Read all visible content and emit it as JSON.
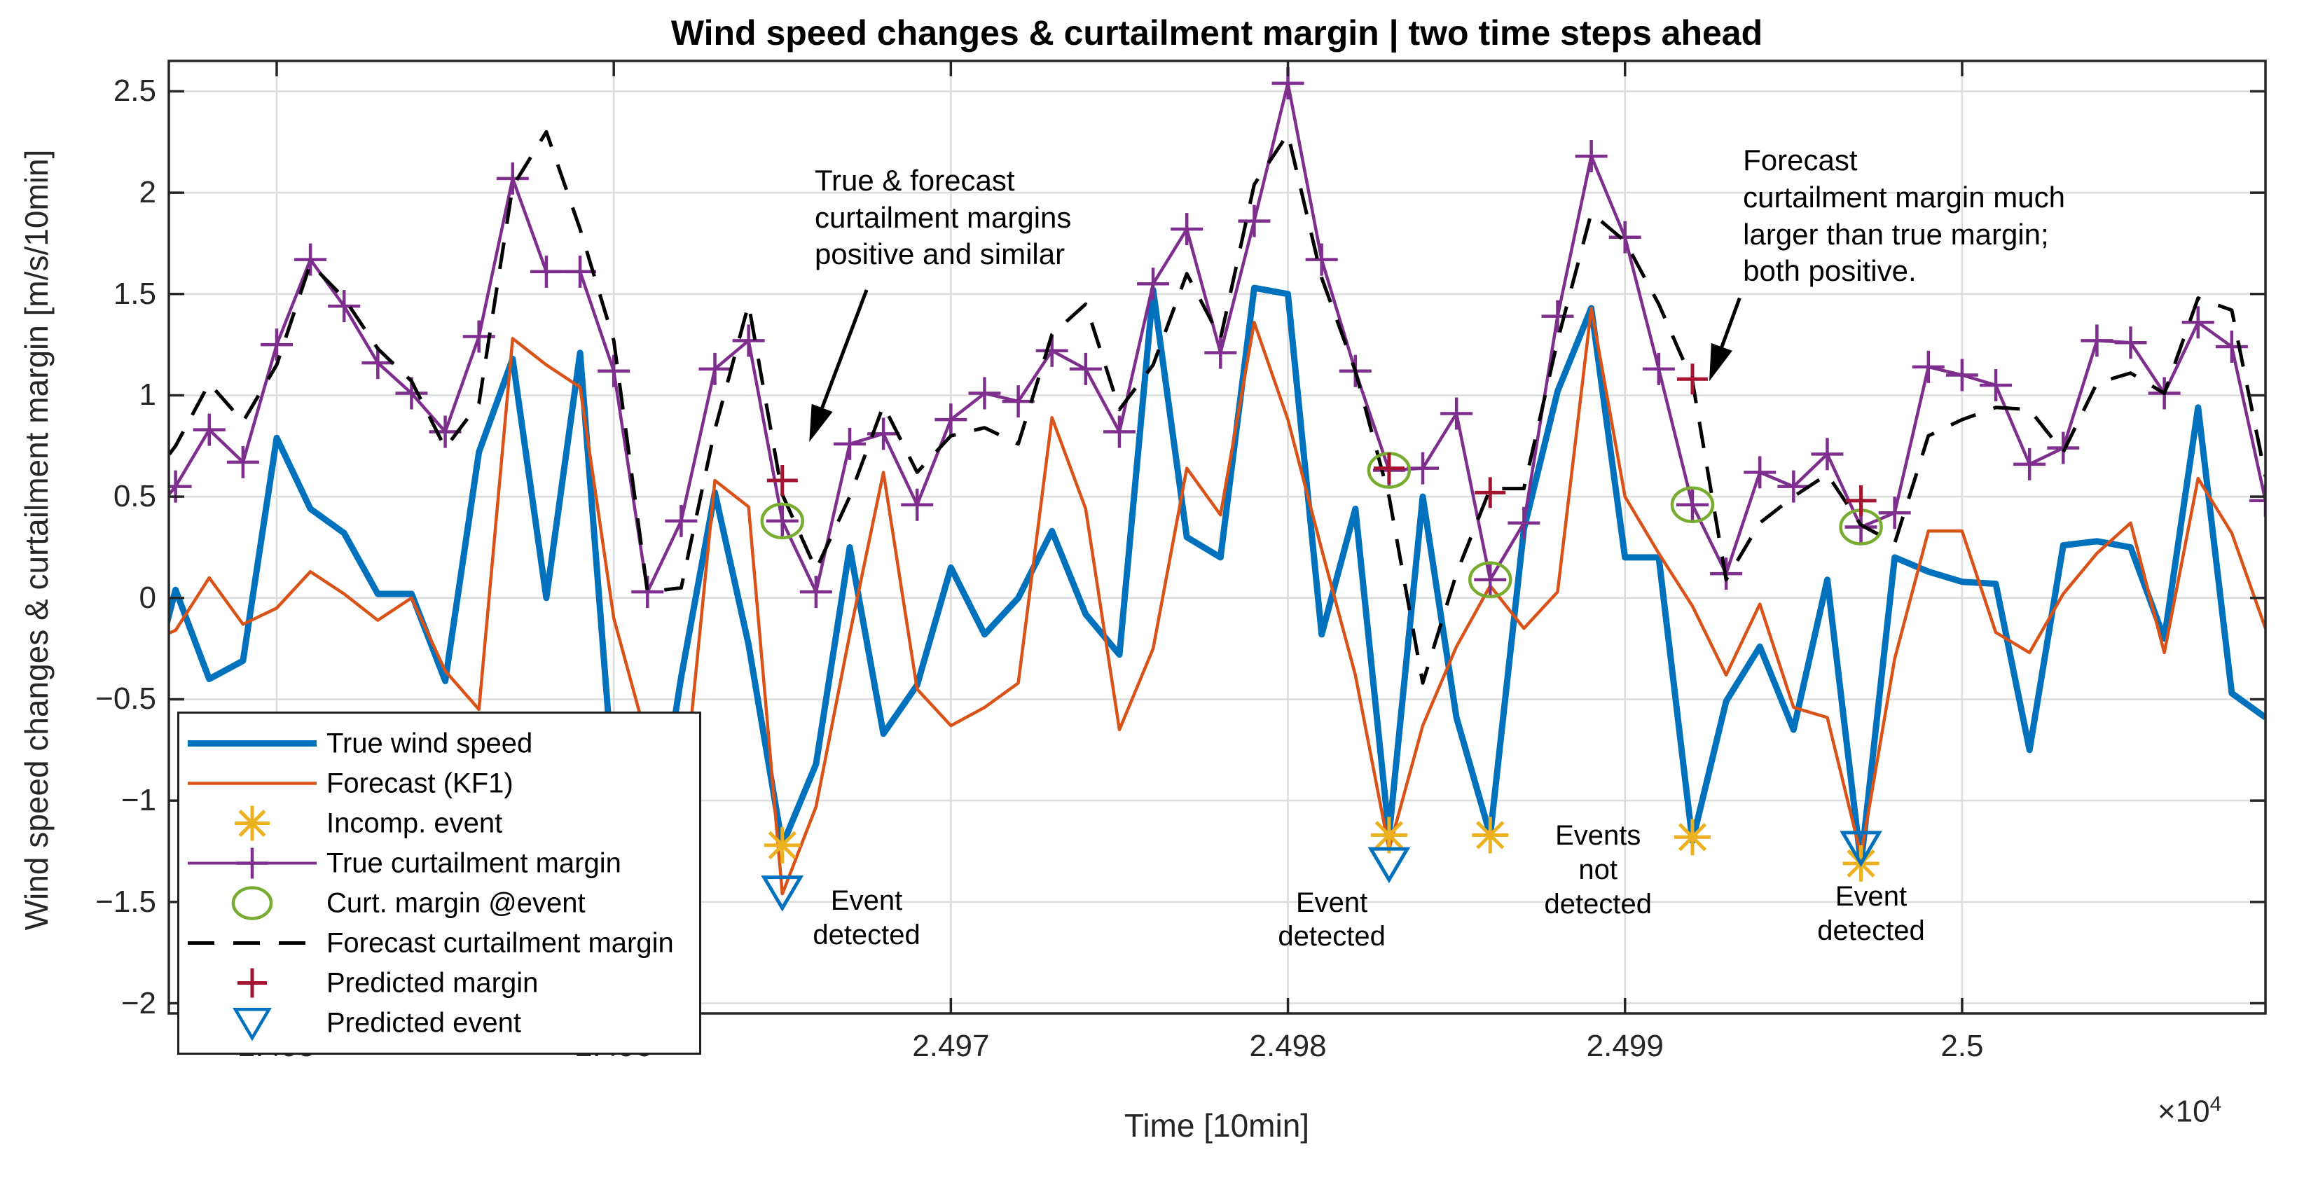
{
  "title": "Wind speed changes & curtailment margin | two time steps ahead",
  "y_axis": {
    "label": "Wind speed changes & curtailment margin [m/s/10min]",
    "ticks": [
      {
        "value": -2,
        "label": "−2"
      },
      {
        "value": -1.5,
        "label": "−1.5"
      },
      {
        "value": -1,
        "label": "−1"
      },
      {
        "value": -0.5,
        "label": "−0.5"
      },
      {
        "value": 0,
        "label": "0"
      },
      {
        "value": 0.5,
        "label": "0.5"
      },
      {
        "value": 1,
        "label": "1"
      },
      {
        "value": 1.5,
        "label": "1.5"
      },
      {
        "value": 2,
        "label": "2"
      },
      {
        "value": 2.5,
        "label": "2.5"
      }
    ]
  },
  "x_axis": {
    "label": "Time [10min]",
    "exponent_base": "×10",
    "exponent_power": "4",
    "ticks": [
      {
        "value": 24950,
        "label": "2.495"
      },
      {
        "value": 24960,
        "label": "2.496"
      },
      {
        "value": 24970,
        "label": "2.497"
      },
      {
        "value": 24980,
        "label": "2.498"
      },
      {
        "value": 24990,
        "label": "2.499"
      },
      {
        "value": 25000,
        "label": "2.5"
      }
    ]
  },
  "legend": {
    "items": [
      {
        "label": "True wind speed",
        "kind": "thick-line",
        "color": "#0072BD"
      },
      {
        "label": "Forecast (KF1)",
        "kind": "line",
        "color": "#D95319"
      },
      {
        "label": "Incomp. event",
        "kind": "asterisk",
        "color": "#EDB120"
      },
      {
        "label": "True curtailment margin",
        "kind": "line-plus",
        "color": "#7E2F8E"
      },
      {
        "label": "Curt. margin @event",
        "kind": "circle",
        "color": "#77AC30"
      },
      {
        "label": "Forecast curtailment margin",
        "kind": "dashed",
        "color": "#000000"
      },
      {
        "label": "Predicted margin",
        "kind": "plus",
        "color": "#A2142F"
      },
      {
        "label": "Predicted event",
        "kind": "triangle-down",
        "color": "#0072BD"
      }
    ]
  },
  "annotations": [
    {
      "id": "margins-similar",
      "lines": [
        "True & forecast",
        "curtailment margins",
        "positive and similar"
      ],
      "t": 24965.96,
      "v": 2.15,
      "arrow": {
        "t1": 24967.5,
        "v1": 1.52,
        "t2": 24965.8,
        "v2": 0.77
      }
    },
    {
      "id": "forecast-larger",
      "lines": [
        "Forecast",
        "curtailment margin much",
        "larger than true margin;",
        "both positive."
      ],
      "t": 24993.5,
      "v": 2.25,
      "arrow": {
        "t1": 24993.4,
        "v1": 1.48,
        "t2": 24992.5,
        "v2": 1.07
      }
    }
  ],
  "event_labels": [
    {
      "lines": [
        "Event",
        "detected"
      ],
      "t": 24967.5,
      "v": -1.41
    },
    {
      "lines": [
        "Event",
        "detected"
      ],
      "t": 24981.3,
      "v": -1.42
    },
    {
      "lines": [
        "Events",
        "not",
        "detected"
      ],
      "t": 24989.2,
      "v": -1.09
    },
    {
      "lines": [
        "Event",
        "detected"
      ],
      "t": 24997.3,
      "v": -1.39
    }
  ],
  "chart_data": {
    "type": "line",
    "xlabel": "Time [10min]",
    "ylabel": "Wind speed changes & curtailment margin [m/s/10min]",
    "xlim": [
      24946.8,
      25009.0
    ],
    "ylim": [
      -2.05,
      2.65
    ],
    "grid": true,
    "x_start": 24946,
    "series": [
      {
        "name": "True wind speed",
        "color": "#0072BD",
        "width": 9,
        "values": [
          -0.6,
          0.04,
          -0.4,
          -0.31,
          0.79,
          0.44,
          0.32,
          0.02,
          0.02,
          -0.41,
          0.72,
          1.18,
          0.0,
          1.21,
          -0.93,
          -1.45,
          -0.39,
          0.52,
          -0.23,
          -1.22,
          -0.82,
          0.25,
          -0.67,
          -0.43,
          0.15,
          -0.18,
          0.0,
          0.33,
          -0.08,
          -0.28,
          1.52,
          0.3,
          0.2,
          1.53,
          1.5,
          -0.18,
          0.44,
          -1.17,
          0.5,
          -0.59,
          -1.17,
          0.34,
          1.02,
          1.43,
          0.2,
          0.2,
          -1.2,
          -0.51,
          -0.24,
          -0.65,
          0.09,
          -1.31,
          0.2,
          0.13,
          0.08,
          0.07,
          -0.75,
          0.26,
          0.28,
          0.25,
          -0.2,
          0.94,
          -0.47,
          -0.59
        ]
      },
      {
        "name": "Forecast (KF1)",
        "color": "#D95319",
        "width": 4.5,
        "values": [
          -0.23,
          -0.16,
          0.1,
          -0.13,
          -0.05,
          0.13,
          0.02,
          -0.11,
          0.0,
          -0.36,
          -0.55,
          1.28,
          1.15,
          1.04,
          -0.1,
          -0.71,
          -1.1,
          0.58,
          0.45,
          -1.46,
          -1.03,
          -0.18,
          0.62,
          -0.45,
          -0.63,
          -0.54,
          -0.42,
          0.89,
          0.44,
          -0.65,
          -0.25,
          0.64,
          0.41,
          1.36,
          0.88,
          0.24,
          -0.38,
          -1.24,
          -0.63,
          -0.24,
          0.06,
          -0.15,
          0.03,
          1.43,
          0.5,
          0.22,
          -0.04,
          -0.38,
          -0.03,
          -0.54,
          -0.59,
          -1.27,
          -0.3,
          0.33,
          0.33,
          -0.17,
          -0.27,
          0.02,
          0.22,
          0.37,
          -0.27,
          0.59,
          0.32,
          -0.15
        ]
      },
      {
        "name": "True curtailment margin",
        "color": "#7E2F8E",
        "width": 4.5,
        "marker": "plus",
        "values": [
          0.35,
          0.55,
          0.83,
          0.67,
          1.25,
          1.67,
          1.44,
          1.16,
          1.01,
          0.82,
          1.29,
          2.07,
          1.61,
          1.61,
          1.12,
          0.03,
          0.38,
          1.13,
          1.27,
          0.38,
          0.03,
          0.76,
          0.81,
          0.46,
          0.88,
          1.01,
          0.97,
          1.22,
          1.13,
          0.82,
          1.55,
          1.82,
          1.21,
          1.86,
          2.54,
          1.67,
          1.12,
          0.63,
          0.64,
          0.91,
          0.09,
          0.37,
          1.39,
          2.18,
          1.78,
          1.13,
          0.46,
          0.12,
          0.62,
          0.55,
          0.71,
          0.35,
          0.42,
          1.14,
          1.1,
          1.05,
          0.66,
          0.74,
          1.27,
          1.26,
          1.01,
          1.36,
          1.24,
          0.48
        ]
      },
      {
        "name": "Forecast curtailment margin",
        "color": "#000000",
        "width": 5,
        "dash": "38 27",
        "values": [
          0.53,
          0.75,
          1.06,
          0.87,
          1.15,
          1.65,
          1.48,
          1.23,
          1.07,
          0.74,
          0.96,
          2.03,
          2.3,
          1.82,
          1.27,
          0.03,
          0.05,
          0.83,
          1.45,
          0.51,
          0.14,
          0.5,
          0.95,
          0.62,
          0.8,
          0.84,
          0.76,
          1.3,
          1.45,
          0.93,
          1.15,
          1.6,
          1.28,
          2.04,
          2.29,
          1.58,
          1.12,
          0.5,
          -0.42,
          0.12,
          0.54,
          0.54,
          1.27,
          1.9,
          1.76,
          1.45,
          1.07,
          0.09,
          0.37,
          0.5,
          0.61,
          0.36,
          0.27,
          0.8,
          0.88,
          0.94,
          0.93,
          0.72,
          1.06,
          1.11,
          1.01,
          1.48,
          1.42,
          0.6
        ]
      }
    ],
    "markers": {
      "incomplete_events": {
        "name": "Incomp. event",
        "color": "#EDB120",
        "shape": "asterisk",
        "points": [
          [
            24965,
            -1.22
          ],
          [
            24983,
            -1.17
          ],
          [
            24986,
            -1.17
          ],
          [
            24992,
            -1.18
          ],
          [
            24997,
            -1.31
          ]
        ]
      },
      "curt_margin_at_event": {
        "name": "Curt. margin @event",
        "color": "#77AC30",
        "shape": "circle",
        "points": [
          [
            24965,
            0.38
          ],
          [
            24983,
            0.63
          ],
          [
            24986,
            0.09
          ],
          [
            24992,
            0.46
          ],
          [
            24997,
            0.35
          ]
        ]
      },
      "predicted_margin": {
        "name": "Predicted margin",
        "color": "#A2142F",
        "shape": "plus",
        "points": [
          [
            24965,
            0.58
          ],
          [
            24983,
            0.64
          ],
          [
            24986,
            0.52
          ],
          [
            24992,
            1.08
          ],
          [
            24997,
            0.48
          ]
        ]
      },
      "predicted_events": {
        "name": "Predicted event",
        "color": "#0072BD",
        "shape": "triangle-down",
        "points": [
          [
            24965,
            -1.45
          ],
          [
            24983,
            -1.31
          ],
          [
            24997,
            -1.23
          ]
        ]
      }
    },
    "colors": {
      "axes": "#262626",
      "grid": "#dcdcdc",
      "background": "#ffffff"
    }
  }
}
